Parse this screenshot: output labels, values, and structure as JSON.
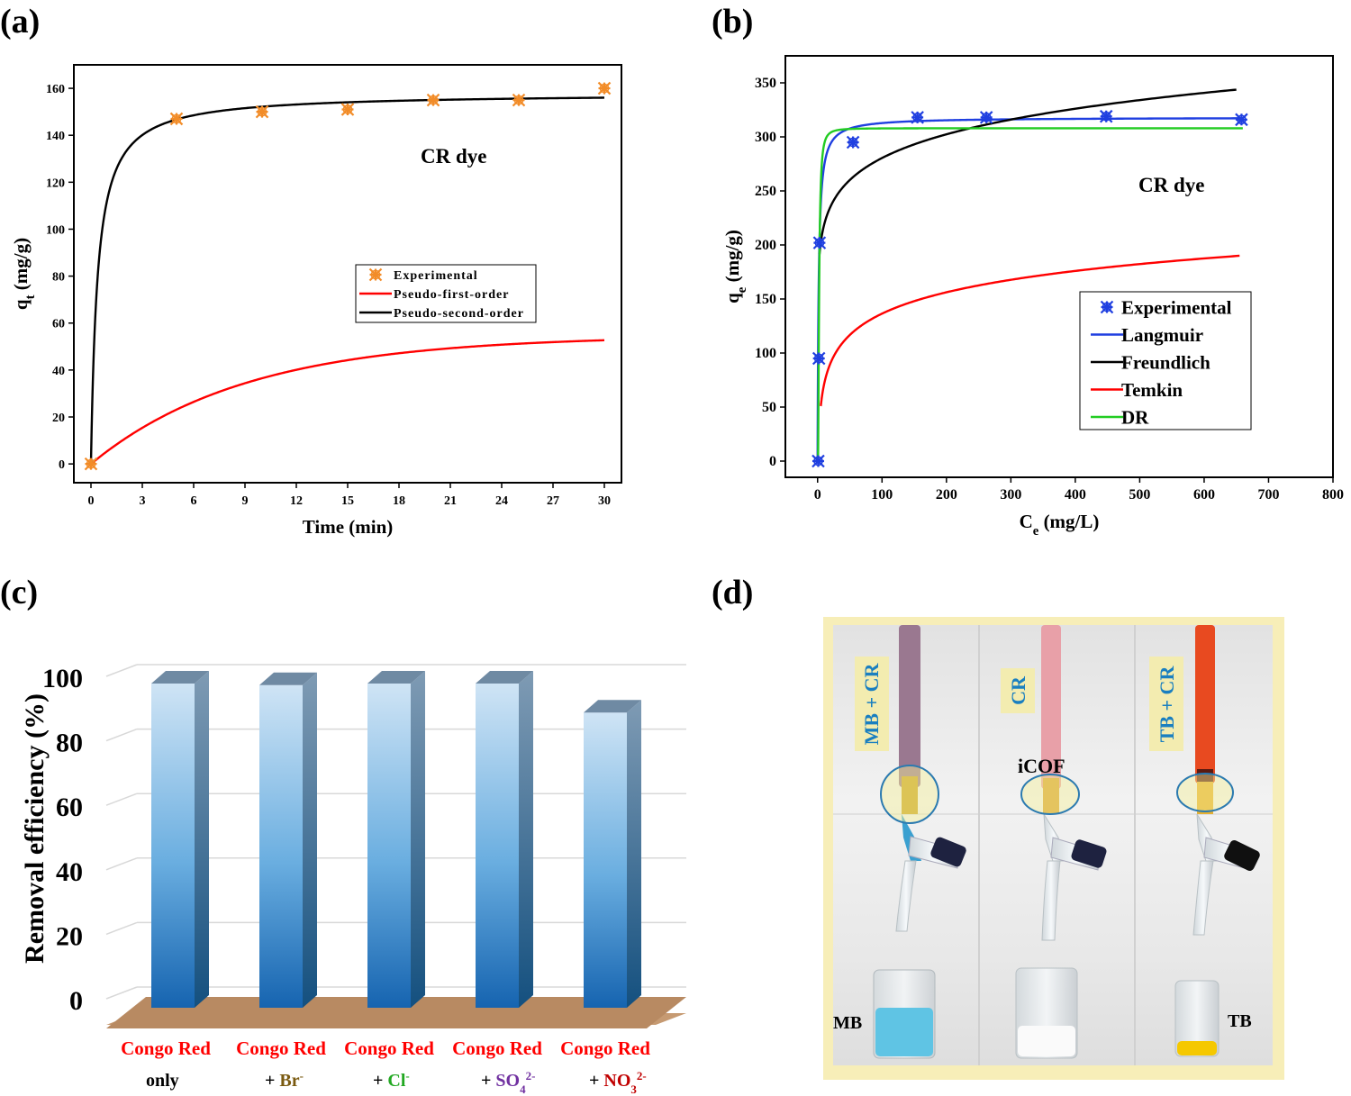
{
  "panels": {
    "a": "(a)",
    "b": "(b)",
    "c": "(c)",
    "d": "(d)"
  },
  "chart_data": [
    {
      "panel": "(a)",
      "type": "line",
      "xlabel": "Time (min)",
      "ylabel": "qt (mg/g)",
      "annotation": "CR dye",
      "xlim": [
        -1,
        31
      ],
      "ylim": [
        -8,
        170
      ],
      "xticks": [
        0,
        3,
        6,
        9,
        12,
        15,
        18,
        21,
        24,
        27,
        30
      ],
      "yticks": [
        0,
        20,
        40,
        60,
        80,
        100,
        120,
        140,
        160
      ],
      "legend_position": "center-right",
      "series": [
        {
          "name": "Experimental",
          "kind": "scatter",
          "color": "#f28c28",
          "x": [
            0,
            5,
            10,
            15,
            20,
            25,
            30
          ],
          "y": [
            0,
            147,
            150,
            151,
            155,
            155,
            160
          ]
        },
        {
          "name": "Pseudo-first-order",
          "kind": "line",
          "color": "#ff0000",
          "model": {
            "qe": 54.7,
            "k1": 0.11
          }
        },
        {
          "name": "Pseudo-second-order",
          "kind": "line",
          "color": "#000000",
          "model": {
            "qe": 158,
            "k2": 0.0165
          }
        }
      ]
    },
    {
      "panel": "(b)",
      "type": "line",
      "xlabel": "Ce (mg/L)",
      "ylabel": "qe (mg/g)",
      "annotation": "CR dye",
      "xlim": [
        -50,
        800
      ],
      "ylim": [
        -15,
        375
      ],
      "xticks": [
        0,
        100,
        200,
        300,
        400,
        500,
        600,
        700,
        800
      ],
      "yticks": [
        0,
        50,
        100,
        150,
        200,
        250,
        300,
        350
      ],
      "legend_position": "center-right",
      "series": [
        {
          "name": "Experimental",
          "kind": "scatter",
          "color": "#1f3fe0",
          "x": [
            1,
            2,
            3,
            55,
            155,
            262,
            448,
            658
          ],
          "y": [
            0,
            95,
            202,
            295,
            318,
            318,
            319,
            316
          ]
        },
        {
          "name": "Langmuir",
          "kind": "line",
          "color": "#1f3fe0",
          "model": {
            "qm": 318,
            "KL": 0.6
          }
        },
        {
          "name": "Freundlich",
          "kind": "line",
          "color": "#000000",
          "model": {
            "KF": 170,
            "n": 9.2
          }
        },
        {
          "name": "Temkin",
          "kind": "line",
          "color": "#ff0000",
          "model": {
            "B": 28.5,
            "KT": 1200
          }
        },
        {
          "name": "DR",
          "kind": "line",
          "color": "#22cc22",
          "model": {
            "qm": 308,
            "E": 0.7
          }
        }
      ]
    },
    {
      "panel": "(c)",
      "type": "bar",
      "ylabel": "Removal efficiency (%)",
      "ylim": [
        0,
        100
      ],
      "yticks": [
        0,
        20,
        40,
        60,
        80,
        100
      ],
      "categories": [
        {
          "line1": "Congo Red",
          "line2": "only",
          "ion": "",
          "sup": "",
          "ion_color": "#000000"
        },
        {
          "line1": "Congo Red",
          "line2": "+ ",
          "ion": "Br",
          "sup": "-",
          "ion_color": "#7a5a10"
        },
        {
          "line1": "Congo Red",
          "line2": "+ ",
          "ion": "Cl",
          "sup": "-",
          "ion_color": "#22a822"
        },
        {
          "line1": "Congo Red",
          "line2": "+ ",
          "ion": "SO4",
          "sup": "2-",
          "ion_color": "#7030a0"
        },
        {
          "line1": "Congo Red",
          "line2": "+ ",
          "ion": "NO3",
          "sup": "2-",
          "ion_color": "#c00000"
        }
      ],
      "values": [
        100,
        99.5,
        100,
        100,
        91
      ]
    }
  ],
  "photo": {
    "labels": {
      "mb_cr": "MB + CR",
      "cr": "CR",
      "tb_cr": "TB + CR",
      "icof": "iCOF",
      "mb": "MB",
      "tb": "TB"
    },
    "colors": {
      "frame": "#f7eeb8",
      "tube_mb_cr": "#9a7890",
      "tube_cr": "#e8a0a8",
      "tube_tb_cr": "#e84a20",
      "mb_liquid": "#5fc4e4",
      "tb_liquid": "#f5c800"
    }
  }
}
